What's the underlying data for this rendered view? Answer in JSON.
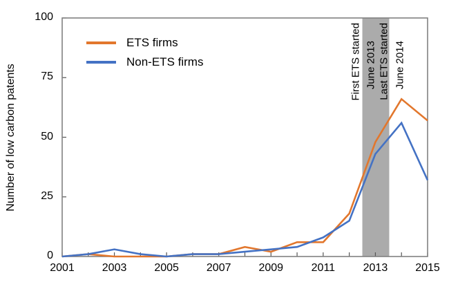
{
  "chart_data": {
    "type": "line",
    "title": "",
    "xlabel": "",
    "ylabel": "Number of low carbon patents",
    "x": [
      2001,
      2002,
      2003,
      2004,
      2005,
      2006,
      2007,
      2008,
      2009,
      2010,
      2011,
      2012,
      2013,
      2014,
      2015
    ],
    "x_tick_years": [
      2001,
      2003,
      2005,
      2007,
      2009,
      2011,
      2013,
      2015
    ],
    "x_tick_labels": [
      "2001",
      "2003",
      "2005",
      "2007",
      "2009",
      "2011",
      "2013",
      "2015"
    ],
    "y_ticks": [
      0,
      25,
      50,
      75,
      100
    ],
    "y_tick_labels": [
      "0",
      "25",
      "50",
      "75",
      "100"
    ],
    "xlim": [
      2001,
      2015
    ],
    "ylim": [
      0,
      100
    ],
    "grid": false,
    "legend_position": "upper-left-inside",
    "series": [
      {
        "name": "ETS firms",
        "color": "#E2772D",
        "values": [
          0,
          1,
          0,
          0,
          0,
          1,
          1,
          4,
          2,
          6,
          6,
          18,
          48,
          66,
          57
        ]
      },
      {
        "name": "Non-ETS firms",
        "color": "#4472C4",
        "values": [
          0,
          1,
          3,
          1,
          0,
          1,
          1,
          2,
          3,
          4,
          8,
          15,
          43,
          56,
          32
        ]
      }
    ],
    "band": {
      "x_start": 2012.5,
      "x_end": 2013.53,
      "color": "#ABABAB",
      "annotations": [
        {
          "text": "First ETS started",
          "side": "outside-left"
        },
        {
          "text": "June 2013",
          "side": "inside-left"
        },
        {
          "text": "Last ETS started",
          "side": "inside-right"
        },
        {
          "text": "June 2014",
          "side": "outside-right"
        }
      ]
    },
    "axis_color": "#808080",
    "tick_color": "#555555",
    "text_color": "#000000"
  }
}
